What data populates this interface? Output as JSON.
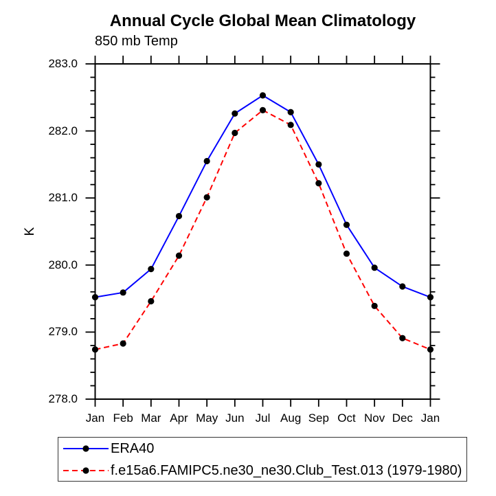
{
  "chart_data": {
    "type": "line",
    "title": "Annual Cycle Global Mean Climatology",
    "subtitle": "850 mb Temp",
    "ylabel": "K",
    "x_categories": [
      "Jan",
      "Feb",
      "Mar",
      "Apr",
      "May",
      "Jun",
      "Jul",
      "Aug",
      "Sep",
      "Oct",
      "Nov",
      "Dec",
      "Jan"
    ],
    "ylim": [
      278.0,
      283.0
    ],
    "y_major_step": 1.0,
    "y_minor_step": 0.2,
    "y_tick_labels": [
      "278.0",
      "279.0",
      "280.0",
      "281.0",
      "282.0",
      "283.0"
    ],
    "grid": false,
    "legend_position": "bottom-left",
    "axis_color": "#000000",
    "series": [
      {
        "name": "ERA40",
        "color": "#0000ff",
        "line_style": "solid",
        "marker": "filled-circle",
        "marker_color": "#000000",
        "values": [
          279.52,
          279.59,
          279.94,
          280.73,
          281.55,
          282.26,
          282.53,
          282.28,
          281.5,
          280.6,
          279.96,
          279.68,
          279.52
        ]
      },
      {
        "name": "f.e15a6.FAMIPC5.ne30_ne30.Club_Test.013 (1979-1980)",
        "color": "#ff0000",
        "line_style": "dashed",
        "marker": "filled-circle",
        "marker_color": "#000000",
        "values": [
          278.74,
          278.83,
          279.46,
          280.14,
          281.01,
          281.97,
          282.31,
          282.09,
          281.22,
          280.17,
          279.39,
          278.91,
          278.74
        ]
      }
    ]
  }
}
